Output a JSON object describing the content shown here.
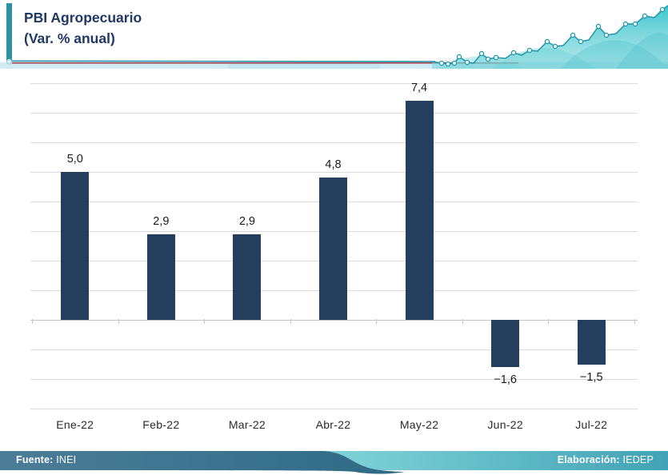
{
  "header": {
    "title": "PBI Agropecuario",
    "subtitle": "(Var. % anual)"
  },
  "footer": {
    "source_label": "Fuente:",
    "source_value": "INEI",
    "elaboration_label": "Elaboración:",
    "elaboration_value": "IEDEP"
  },
  "colors": {
    "bar": "#243F5E",
    "title_text": "#1F3864",
    "accent_teal": "#2B92A6",
    "gridline": "#DBDBDB",
    "footer_left_dark": "#2E6B86",
    "footer_right_teal": "#42A2B7"
  },
  "chart_data": {
    "type": "bar",
    "title": "PBI Agropecuario",
    "subtitle": "(Var. % anual)",
    "categories": [
      "Ene-22",
      "Feb-22",
      "Mar-22",
      "Abr-22",
      "May-22",
      "Jun-22",
      "Jul-22"
    ],
    "values": [
      5.0,
      2.9,
      2.9,
      4.8,
      7.4,
      -1.6,
      -1.5
    ],
    "value_labels": [
      "5,0",
      "2,9",
      "2,9",
      "4,8",
      "7,4",
      "−1,6",
      "−1,5"
    ],
    "bar_color": "#243F5E",
    "ylim": [
      -3,
      8
    ],
    "gridline_step": 1,
    "grid": true,
    "legend_position": "none",
    "y_axis_labels_visible": false,
    "xlabel": "",
    "ylabel": ""
  }
}
